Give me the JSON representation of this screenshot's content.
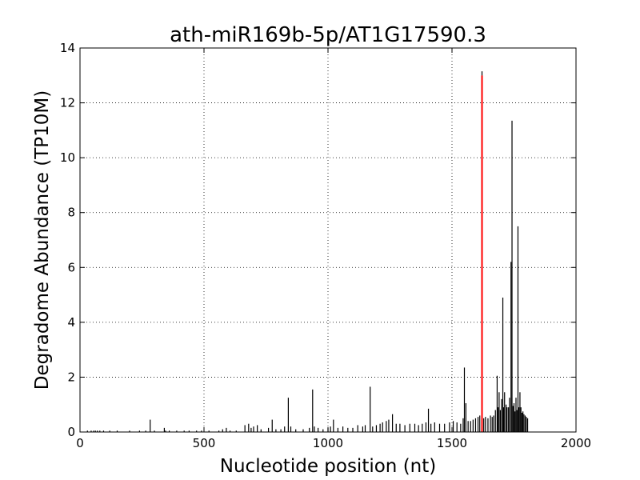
{
  "chart_data": {
    "type": "bar",
    "title": "ath-miR169b-5p/AT1G17590.3",
    "xlabel": "Nucleotide position (nt)",
    "ylabel": "Degradome Abundance (TP10M)",
    "xlim": [
      0,
      2000
    ],
    "ylim": [
      0,
      14
    ],
    "x_ticks": [
      0,
      500,
      1000,
      1500,
      2000
    ],
    "y_ticks": [
      0,
      2,
      4,
      6,
      8,
      10,
      12,
      14
    ],
    "grid": true,
    "colors": {
      "background": "#ffffff",
      "series": "#000000",
      "highlight": "#ff0000",
      "grid": "#000000"
    },
    "series": [
      {
        "x": [
          30,
          45,
          55,
          62,
          70,
          80,
          95,
          120,
          150,
          200,
          240,
          265,
          283,
          300,
          340,
          345,
          360,
          390,
          420,
          440,
          470,
          490,
          520,
          560,
          575,
          590,
          605,
          630,
          665,
          680,
          690,
          700,
          715,
          730,
          760,
          775,
          790,
          810,
          825,
          840,
          850,
          870,
          900,
          925,
          938,
          945,
          960,
          980,
          1000,
          1010,
          1022,
          1040,
          1060,
          1080,
          1100,
          1120,
          1140,
          1150,
          1170,
          1180,
          1195,
          1210,
          1220,
          1235,
          1245,
          1260,
          1275,
          1290,
          1310,
          1330,
          1350,
          1365,
          1380,
          1395,
          1405,
          1415,
          1430,
          1450,
          1470,
          1490,
          1505,
          1520,
          1535,
          1545,
          1550,
          1556,
          1565,
          1575,
          1585,
          1595,
          1605,
          1612,
          1628,
          1635,
          1645,
          1655,
          1662,
          1668,
          1675,
          1682,
          1686,
          1690,
          1695,
          1700,
          1705,
          1708,
          1712,
          1718,
          1722,
          1728,
          1732,
          1738,
          1742,
          1746,
          1750,
          1754,
          1758,
          1762,
          1766,
          1770,
          1774,
          1778,
          1782,
          1786,
          1790,
          1795,
          1800,
          1805
        ],
        "values": [
          0.05,
          0.05,
          0.05,
          0.05,
          0.05,
          0.05,
          0.05,
          0.05,
          0.05,
          0.05,
          0.05,
          0.05,
          0.45,
          0.05,
          0.15,
          0.05,
          0.05,
          0.05,
          0.05,
          0.05,
          0.05,
          0.05,
          0.05,
          0.05,
          0.1,
          0.15,
          0.05,
          0.05,
          0.25,
          0.3,
          0.15,
          0.2,
          0.25,
          0.1,
          0.15,
          0.45,
          0.1,
          0.1,
          0.2,
          1.25,
          0.2,
          0.1,
          0.1,
          0.15,
          1.55,
          0.2,
          0.15,
          0.1,
          0.15,
          0.2,
          0.45,
          0.15,
          0.2,
          0.15,
          0.15,
          0.25,
          0.2,
          0.25,
          1.65,
          0.2,
          0.25,
          0.3,
          0.35,
          0.4,
          0.45,
          0.65,
          0.3,
          0.3,
          0.25,
          0.3,
          0.3,
          0.25,
          0.3,
          0.35,
          0.85,
          0.3,
          0.35,
          0.3,
          0.3,
          0.35,
          0.4,
          0.35,
          0.3,
          0.5,
          2.35,
          1.05,
          0.4,
          0.4,
          0.45,
          0.5,
          0.55,
          0.6,
          0.5,
          0.55,
          0.5,
          0.6,
          0.55,
          0.6,
          0.8,
          2.05,
          0.9,
          1.45,
          0.8,
          1.2,
          4.9,
          0.9,
          1.45,
          1.0,
          0.9,
          0.9,
          1.25,
          6.2,
          11.35,
          0.95,
          1.05,
          0.75,
          1.25,
          0.8,
          7.5,
          0.9,
          1.45,
          0.9,
          0.7,
          0.75,
          0.65,
          0.6,
          0.55,
          0.5
        ],
        "color": "#000000"
      },
      {
        "x": [
          1621
        ],
        "values": [
          13.0
        ],
        "color": "#ff0000"
      }
    ],
    "highlight_marker": {
      "x": 1621,
      "y": 13.15
    }
  }
}
